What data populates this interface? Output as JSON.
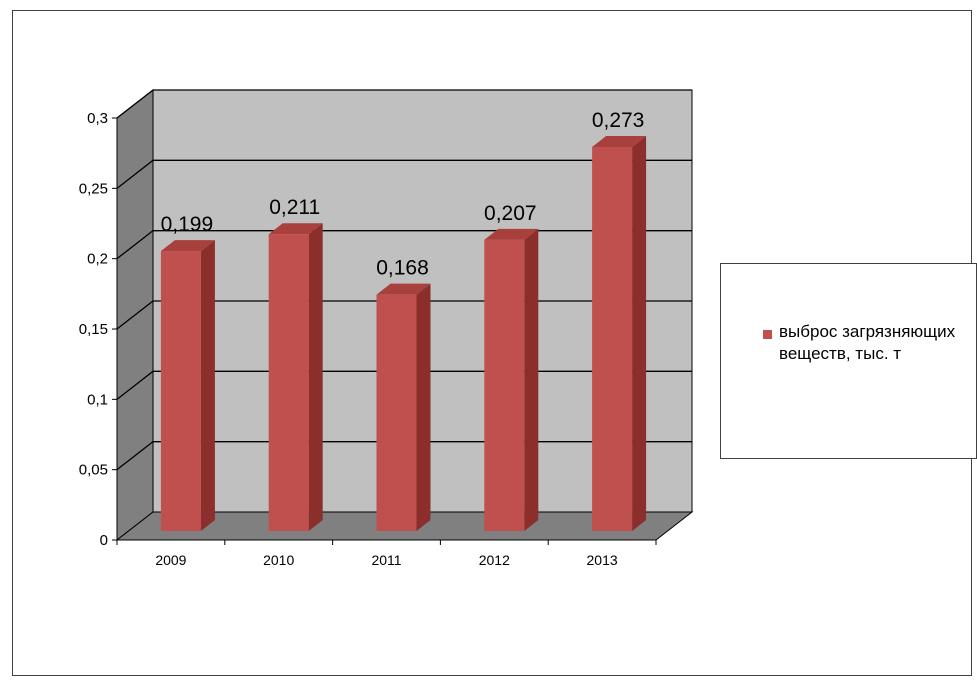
{
  "chart_data": {
    "type": "bar",
    "subtype": "3d-clustered-column",
    "categories": [
      "2009",
      "2010",
      "2011",
      "2012",
      "2013"
    ],
    "series": [
      {
        "name": "выброс загрязняющих веществ, тыс. т",
        "values": [
          0.199,
          0.211,
          0.168,
          0.207,
          0.273
        ]
      }
    ],
    "data_labels": [
      "0,199",
      "0,211",
      "0,168",
      "0,207",
      "0,273"
    ],
    "y_ticks": [
      0,
      0.05,
      0.1,
      0.15,
      0.2,
      0.25,
      0.3
    ],
    "y_tick_labels": [
      "0",
      "0,05",
      "0,1",
      "0,15",
      "0,2",
      "0,25",
      "0,3"
    ],
    "ylim": [
      0,
      0.3
    ],
    "grid": true,
    "legend_position": "right",
    "colors": {
      "bar_front": "#c0504d",
      "bar_side": "#8b2e2c",
      "bar_top": "#a8403d",
      "wall": "#c0c0c0",
      "side_wall": "#808080",
      "floor": "#808080"
    }
  }
}
